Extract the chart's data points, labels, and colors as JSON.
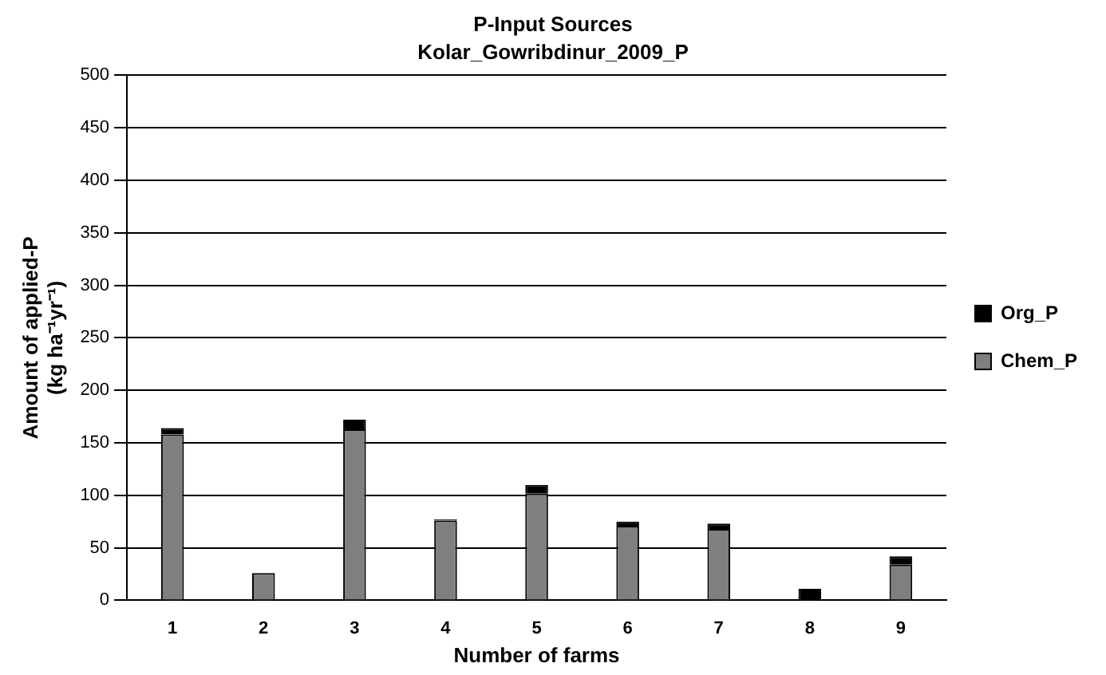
{
  "chart_data": {
    "type": "bar",
    "title": "P-Input Sources",
    "subtitle": "Kolar_Gowribdinur_2009_P",
    "xlabel": "Number of farms",
    "ylabel": "Amount of applied-P\n(kg ha⁻¹yr⁻¹)",
    "categories": [
      "1",
      "2",
      "3",
      "4",
      "5",
      "6",
      "7",
      "8",
      "9"
    ],
    "stacked": true,
    "series": [
      {
        "name": "Chem_P",
        "color": "#7f7f7f",
        "values": [
          158,
          26,
          163,
          76,
          102,
          71,
          68,
          0,
          34
        ]
      },
      {
        "name": "Org_P",
        "color": "#000000",
        "values": [
          6,
          0,
          9,
          1,
          8,
          4,
          5,
          11,
          8
        ]
      }
    ],
    "ylim": [
      0,
      500
    ],
    "yticks": [
      0,
      50,
      100,
      150,
      200,
      250,
      300,
      350,
      400,
      450,
      500
    ],
    "grid": "y",
    "legend": "right"
  }
}
